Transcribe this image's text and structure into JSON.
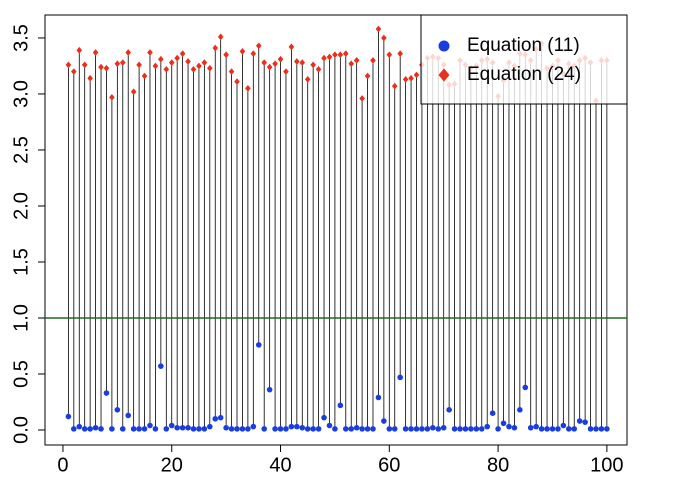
{
  "chart_data": {
    "type": "stem",
    "x": [
      1,
      2,
      3,
      4,
      5,
      6,
      7,
      8,
      9,
      10,
      11,
      12,
      13,
      14,
      15,
      16,
      17,
      18,
      19,
      20,
      21,
      22,
      23,
      24,
      25,
      26,
      27,
      28,
      29,
      30,
      31,
      32,
      33,
      34,
      35,
      36,
      37,
      38,
      39,
      40,
      41,
      42,
      43,
      44,
      45,
      46,
      47,
      48,
      49,
      50,
      51,
      52,
      53,
      54,
      55,
      56,
      57,
      58,
      59,
      60,
      61,
      62,
      63,
      64,
      65,
      66,
      67,
      68,
      69,
      70,
      71,
      72,
      73,
      74,
      75,
      76,
      77,
      78,
      79,
      80,
      81,
      82,
      83,
      84,
      85,
      86,
      87,
      88,
      89,
      90,
      91,
      92,
      93,
      94,
      95,
      96,
      97,
      98,
      99,
      100
    ],
    "series": [
      {
        "name": "Equation (11)",
        "color": "#1a3de0",
        "marker": "circle",
        "values": [
          0.12,
          0.01,
          0.03,
          0.01,
          0.01,
          0.02,
          0.01,
          0.33,
          0.01,
          0.18,
          0.01,
          0.13,
          0.01,
          0.01,
          0.01,
          0.04,
          0.01,
          0.57,
          0.01,
          0.04,
          0.02,
          0.02,
          0.02,
          0.01,
          0.01,
          0.01,
          0.03,
          0.1,
          0.11,
          0.02,
          0.01,
          0.01,
          0.01,
          0.01,
          0.03,
          0.76,
          0.01,
          0.36,
          0.01,
          0.01,
          0.01,
          0.03,
          0.03,
          0.02,
          0.01,
          0.01,
          0.01,
          0.11,
          0.04,
          0.01,
          0.22,
          0.01,
          0.01,
          0.02,
          0.01,
          0.01,
          0.01,
          0.29,
          0.08,
          0.01,
          0.01,
          0.47,
          0.01,
          0.01,
          0.01,
          0.01,
          0.01,
          0.02,
          0.01,
          0.02,
          0.18,
          0.01,
          0.01,
          0.01,
          0.01,
          0.01,
          0.01,
          0.03,
          0.15,
          0.01,
          0.06,
          0.03,
          0.02,
          0.18,
          0.38,
          0.02,
          0.03,
          0.01,
          0.01,
          0.01,
          0.01,
          0.04,
          0.01,
          0.01,
          0.08,
          0.07,
          0.01,
          0.01,
          0.01,
          0.01
        ]
      },
      {
        "name": "Equation (24)",
        "color": "#e8301c",
        "marker": "diamond",
        "values": [
          3.26,
          3.2,
          3.39,
          3.26,
          3.14,
          3.37,
          3.24,
          3.23,
          2.97,
          3.27,
          3.28,
          3.37,
          3.02,
          3.26,
          3.16,
          3.37,
          3.25,
          3.31,
          3.22,
          3.28,
          3.32,
          3.36,
          3.29,
          3.22,
          3.25,
          3.28,
          3.23,
          3.41,
          3.51,
          3.35,
          3.2,
          3.11,
          3.38,
          3.05,
          3.36,
          3.43,
          3.28,
          3.24,
          3.27,
          3.31,
          3.2,
          3.42,
          3.29,
          3.28,
          3.13,
          3.26,
          3.22,
          3.32,
          3.33,
          3.35,
          3.35,
          3.36,
          3.27,
          3.3,
          2.96,
          3.16,
          3.3,
          3.58,
          3.5,
          3.35,
          3.07,
          3.36,
          3.13,
          3.14,
          3.17,
          3.26,
          3.32,
          3.33,
          3.32,
          3.26,
          3.08,
          3.09,
          3.3,
          3.26,
          3.23,
          3.25,
          3.3,
          3.31,
          3.28,
          2.98,
          3.12,
          3.28,
          3.25,
          3.36,
          3.35,
          3.3,
          3.4,
          3.45,
          3.23,
          3.25,
          3.3,
          3.18,
          3.27,
          3.25,
          3.3,
          3.32,
          3.28,
          2.94,
          3.3,
          3.3
        ]
      }
    ],
    "stem_color": "#000000",
    "hline": 1,
    "hline_color": "#1e6b1e",
    "xlim": [
      -3.3,
      103.7
    ],
    "xticks": [
      0,
      20,
      40,
      60,
      80,
      100
    ],
    "ylim": [
      -0.134,
      3.705
    ],
    "yticks": [
      {
        "value": 0,
        "label": "0.0"
      },
      {
        "value": 0.5,
        "label": "0.5"
      },
      {
        "value": 1,
        "label": "1.0"
      },
      {
        "value": 1.5,
        "label": "1.5"
      },
      {
        "value": 2,
        "label": "2.0"
      },
      {
        "value": 2.5,
        "label": "2.5"
      },
      {
        "value": 3,
        "label": "3.0"
      },
      {
        "value": 3.5,
        "label": "3.5"
      }
    ],
    "legend": "top-right"
  }
}
